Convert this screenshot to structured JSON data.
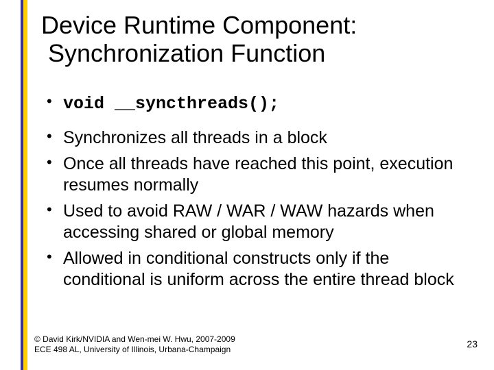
{
  "colors": {
    "accent_blue": "#333399",
    "accent_yellow": "#ffcc00",
    "background": "#ffffff",
    "text": "#000000"
  },
  "title": {
    "line1": "Device Runtime Component:",
    "line2": "Synchronization Function",
    "fontsize": 36
  },
  "bullets": {
    "item1_code": "void __syncthreads();",
    "item2": "Synchronizes all threads in a block",
    "item3": "Once all threads have reached this point, execution resumes normally",
    "item4": "Used to avoid RAW / WAR / WAW hazards when accessing shared or global memory",
    "item5": "Allowed in conditional constructs only if the conditional is uniform across the entire thread block",
    "fontsize": 25
  },
  "footer": {
    "line1": "© David Kirk/NVIDIA and Wen-mei W. Hwu, 2007-2009",
    "line2": "ECE 498 AL, University of Illinois, Urbana-Champaign",
    "fontsize": 12
  },
  "page_number": "23"
}
